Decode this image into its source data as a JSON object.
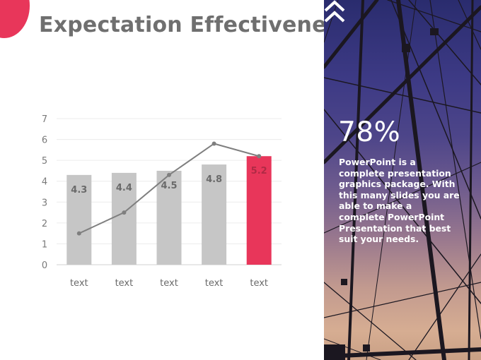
{
  "title": "Expectation Effectiveness",
  "colors": {
    "accent": "#e8365a",
    "bar": "#c6c6c6",
    "highlight_bar": "#e8365a",
    "line": "#7f7f7f",
    "text_gray": "#6f6f6f"
  },
  "chart_data": {
    "type": "bar",
    "title": "",
    "categories": [
      "text",
      "text",
      "text",
      "text",
      "text"
    ],
    "series": [
      {
        "name": "bars",
        "type": "bar",
        "values": [
          4.3,
          4.4,
          4.5,
          4.8,
          5.2
        ],
        "highlight_index": 4
      },
      {
        "name": "line",
        "type": "line",
        "values": [
          1.5,
          2.5,
          4.3,
          5.8,
          5.2
        ]
      }
    ],
    "data_labels": [
      "4.3",
      "4.4",
      "4.5",
      "4.8",
      "5.2"
    ],
    "ylim": [
      0,
      7
    ],
    "yticks": [
      0,
      1,
      2,
      3,
      4,
      5,
      6,
      7
    ],
    "grid": true,
    "xlabel": "",
    "ylabel": ""
  },
  "stat": {
    "value": "78%",
    "icon": "double-chevron-up-icon",
    "description": "PowerPoint is a complete presentation graphics package. With this many slides you are able to make a complete PowerPoint Presentation that best suit your needs."
  }
}
